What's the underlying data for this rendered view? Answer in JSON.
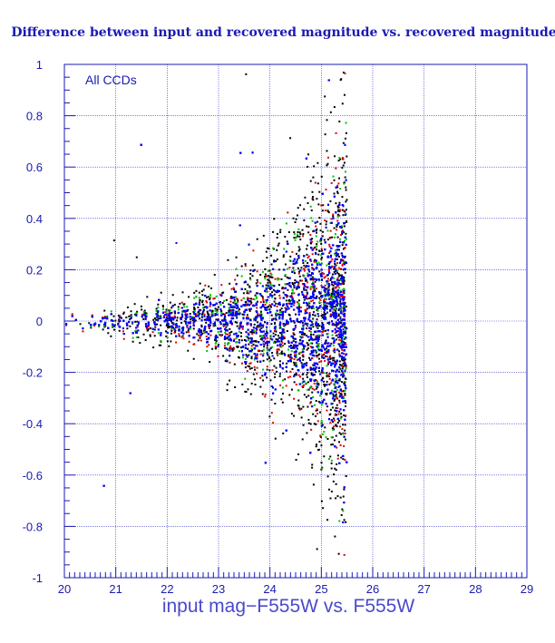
{
  "chart_data": {
    "type": "scatter",
    "title": "Difference between input and recovered magnitude vs. recovered magnitude",
    "xlabel": "input mag−F555W vs. F555W",
    "ylabel": "",
    "annotation": "All CCDs",
    "xlim": [
      20,
      29
    ],
    "ylim": [
      -1,
      1
    ],
    "x_ticks": [
      "20",
      "21",
      "22",
      "23",
      "24",
      "25",
      "26",
      "27",
      "28",
      "29"
    ],
    "y_ticks": [
      "-1",
      "-0.8",
      "-0.6",
      "-0.4",
      "-0.2",
      "0",
      "0.2",
      "0.4",
      "0.6",
      "0.8",
      "1"
    ],
    "grid": true,
    "series_colors": [
      "#000000",
      "#e00000",
      "#00c000",
      "#0000ff"
    ],
    "envelope": {
      "x": [
        20.0,
        21.0,
        22.0,
        23.0,
        24.0,
        25.0,
        25.5
      ],
      "upper": [
        0.03,
        0.05,
        0.08,
        0.14,
        0.3,
        0.55,
        0.9
      ],
      "lower": [
        -0.03,
        -0.05,
        -0.09,
        -0.15,
        -0.3,
        -0.5,
        -0.6
      ]
    },
    "magnitude_cutoff": 25.5
  }
}
